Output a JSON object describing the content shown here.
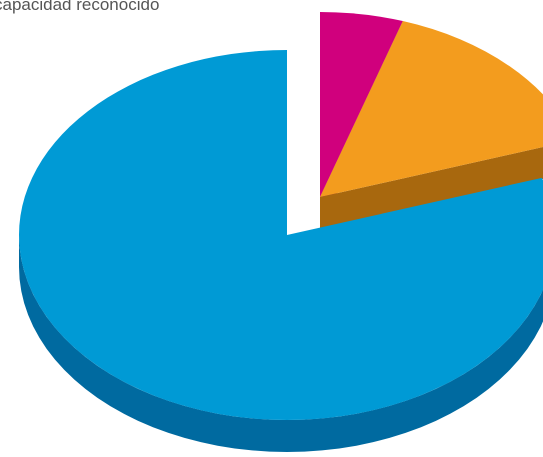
{
  "chart_data": {
    "type": "pie",
    "title": "capacidad reconocido",
    "slices": [
      {
        "label": "",
        "value": 5,
        "color": "#d0007d",
        "side_color": "#8f0057",
        "exploded": true
      },
      {
        "label": "",
        "value": 15,
        "color": "#f39c1e",
        "side_color": "#a8680e",
        "exploded": true
      },
      {
        "label": "",
        "value": 80,
        "color": "#009ad5",
        "side_color": "#006aa0",
        "exploded": false
      }
    ],
    "style": "3d-exploded",
    "legend": "none"
  }
}
